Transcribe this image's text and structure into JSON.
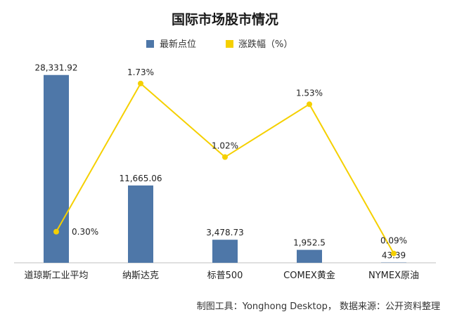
{
  "chart_data": {
    "type": "bar",
    "title": "国际市场股市情况",
    "categories": [
      "道琼斯工业平均",
      "纳斯达克",
      "标普500",
      "COMEX黄金",
      "NYMEX原油"
    ],
    "series": [
      {
        "name": "最新点位",
        "type": "bar",
        "axis": "left",
        "color": "#4e77a8",
        "values": [
          28331.92,
          11665.06,
          3478.73,
          1952.5,
          43.39
        ],
        "labels": [
          "28,331.92",
          "11,665.06",
          "3,478.73",
          "1,952.5",
          "43.39"
        ]
      },
      {
        "name": "涨跌幅（%）",
        "type": "line",
        "axis": "right",
        "color": "#f5d000",
        "values": [
          0.3,
          1.73,
          1.02,
          1.53,
          0.09
        ],
        "labels": [
          "0.30%",
          "1.73%",
          "1.02%",
          "1.53%",
          "0.09%"
        ]
      }
    ],
    "ylim_left": [
      0,
      30000
    ],
    "ylim_right": [
      0,
      2.0
    ],
    "grid": false,
    "legend_position": "top"
  },
  "footer": "制图工具：Yonghong Desktop， 数据来源：公开资料整理"
}
